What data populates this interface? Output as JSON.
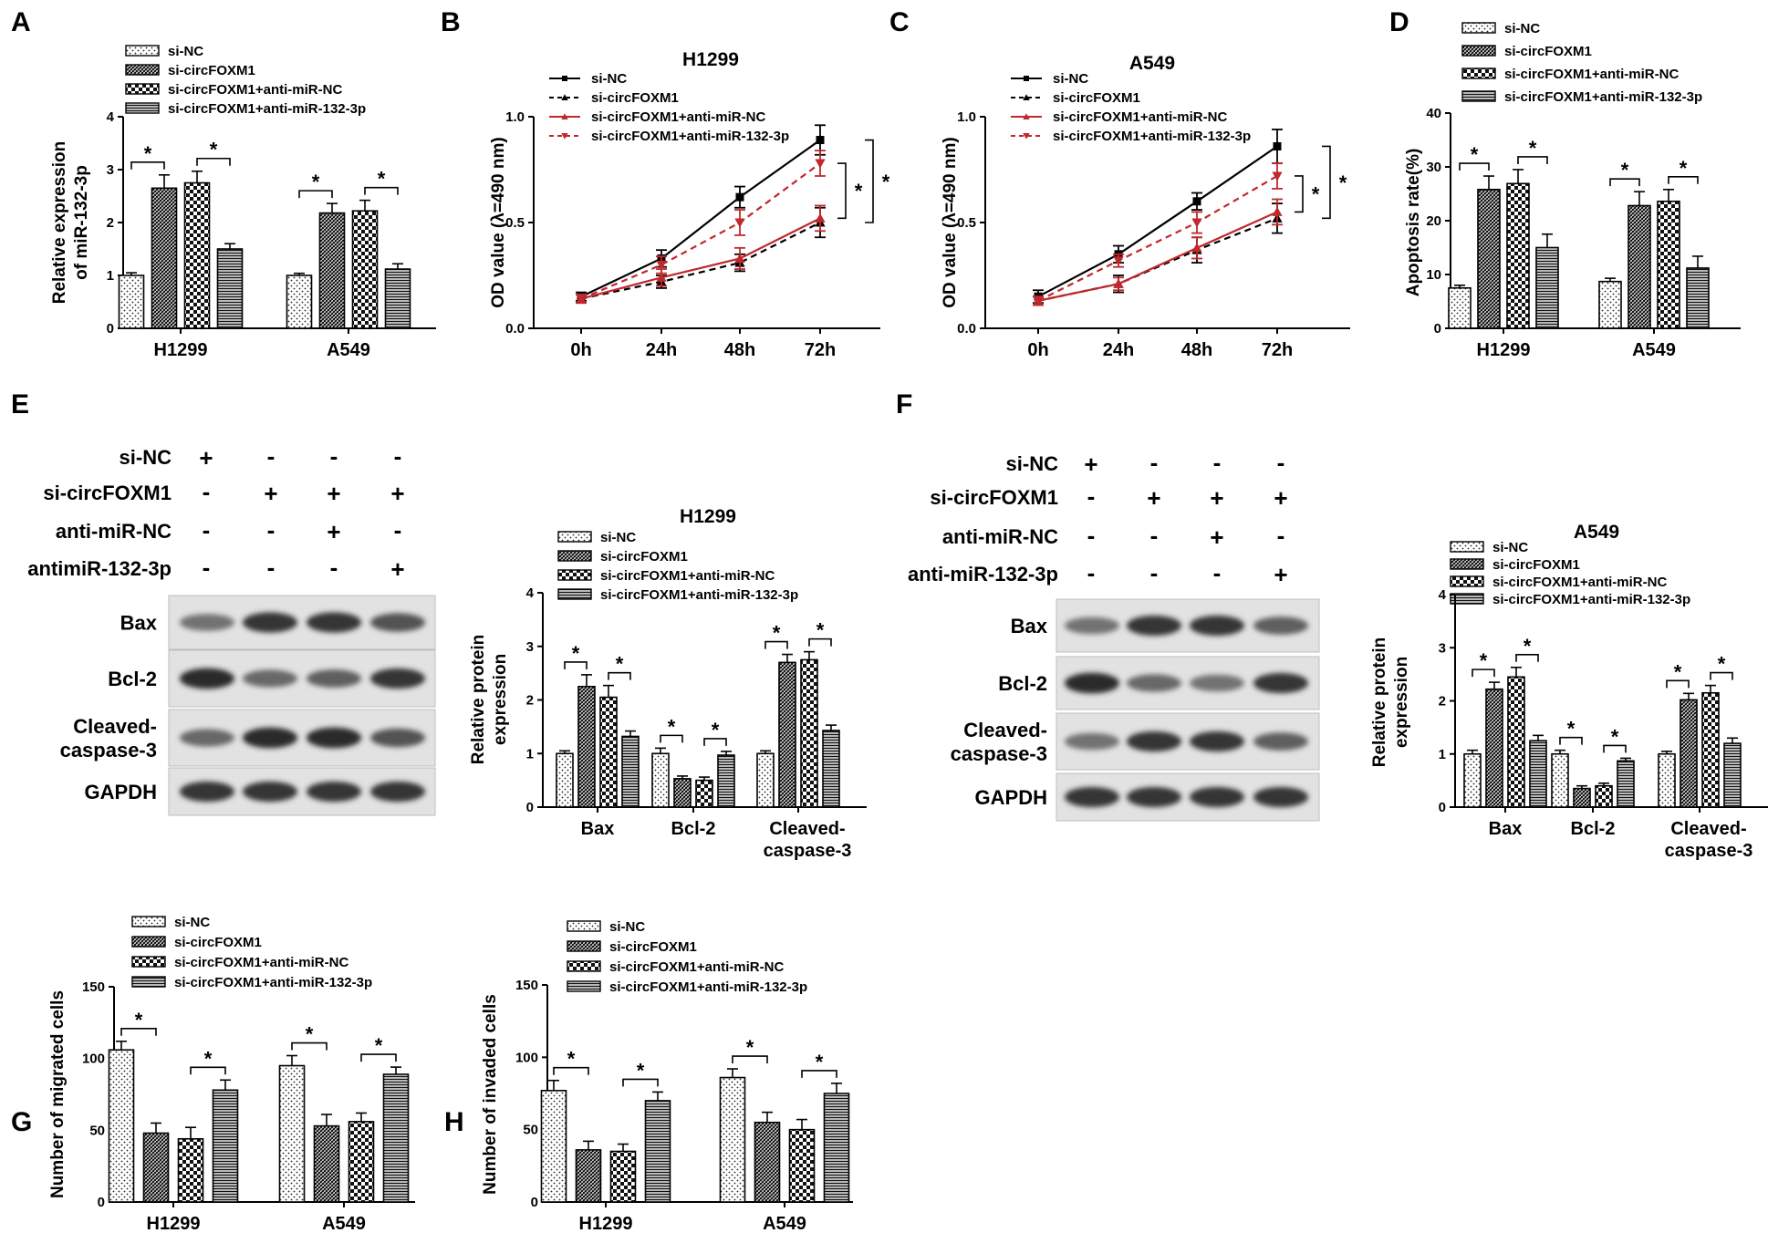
{
  "legend": [
    "si-NC",
    "si-circFOXM1",
    "si-circFOXM1+anti-miR-NC",
    "si-circFOXM1+anti-miR-132-3p"
  ],
  "time_points": [
    "0h",
    "24h",
    "48h",
    "72h"
  ],
  "significance_mark": "*",
  "blots": [
    {
      "panel": "E",
      "rows": [
        {
          "label": "si-NC",
          "signs": [
            "+",
            "-",
            "-",
            "-"
          ]
        },
        {
          "label": "si-circFOXM1",
          "signs": [
            "-",
            "+",
            "+",
            "+"
          ]
        },
        {
          "label": "anti-miR-NC",
          "signs": [
            "-",
            "-",
            "+",
            "-"
          ]
        },
        {
          "label": "antimiR-132-3p",
          "signs": [
            "-",
            "-",
            "-",
            "+"
          ]
        }
      ],
      "bands": [
        {
          "label": [
            "Bax"
          ],
          "intensity": [
            0.55,
            0.85,
            0.85,
            0.7
          ]
        },
        {
          "label": [
            "Bcl-2"
          ],
          "intensity": [
            0.9,
            0.6,
            0.65,
            0.85
          ]
        },
        {
          "label": [
            "Cleaved-",
            "caspase-3"
          ],
          "intensity": [
            0.6,
            0.9,
            0.9,
            0.7
          ]
        },
        {
          "label": [
            "GAPDH"
          ],
          "intensity": [
            0.85,
            0.85,
            0.85,
            0.85
          ]
        }
      ]
    },
    {
      "panel": "F",
      "rows": [
        {
          "label": "si-NC",
          "signs": [
            "+",
            "-",
            "-",
            "-"
          ]
        },
        {
          "label": "si-circFOXM1",
          "signs": [
            "-",
            "+",
            "+",
            "+"
          ]
        },
        {
          "label": "anti-miR-NC",
          "signs": [
            "-",
            "-",
            "+",
            "-"
          ]
        },
        {
          "label": "anti-miR-132-3p",
          "signs": [
            "-",
            "-",
            "-",
            "+"
          ]
        }
      ],
      "bands": [
        {
          "label": [
            "Bax"
          ],
          "intensity": [
            0.55,
            0.85,
            0.85,
            0.65
          ]
        },
        {
          "label": [
            "Bcl-2"
          ],
          "intensity": [
            0.9,
            0.6,
            0.55,
            0.85
          ]
        },
        {
          "label": [
            "Cleaved-",
            "caspase-3"
          ],
          "intensity": [
            0.55,
            0.85,
            0.85,
            0.65
          ]
        },
        {
          "label": [
            "GAPDH"
          ],
          "intensity": [
            0.85,
            0.85,
            0.85,
            0.85
          ]
        }
      ]
    }
  ],
  "chart_data": [
    {
      "panel": "A",
      "type": "bar",
      "title": "",
      "ylabel": [
        "Relative expression",
        "of miR-132-3p"
      ],
      "categories": [
        "H1299",
        "A549"
      ],
      "ylim": [
        0,
        4
      ],
      "yticks": [
        0,
        1,
        2,
        3,
        4
      ],
      "series": [
        {
          "values": [
            1.0,
            1.0
          ],
          "errors": [
            0.05,
            0.04
          ]
        },
        {
          "values": [
            2.65,
            2.18
          ],
          "errors": [
            0.25,
            0.18
          ]
        },
        {
          "values": [
            2.75,
            2.22
          ],
          "errors": [
            0.22,
            0.2
          ]
        },
        {
          "values": [
            1.5,
            1.12
          ],
          "errors": [
            0.1,
            0.1
          ]
        }
      ],
      "sig": [
        [
          0,
          0,
          1
        ],
        [
          0,
          2,
          3
        ],
        [
          1,
          0,
          1
        ],
        [
          1,
          2,
          3
        ]
      ]
    },
    {
      "panel": "B",
      "type": "line",
      "title": "H1299",
      "ylabel": "OD value (λ=490 nm)",
      "x": [
        "0h",
        "24h",
        "48h",
        "72h"
      ],
      "ylim": [
        0,
        1.0
      ],
      "yticks": [
        0.0,
        0.5,
        1.0
      ],
      "series": [
        {
          "values": [
            0.15,
            0.33,
            0.62,
            0.89
          ],
          "errors": [
            0.02,
            0.04,
            0.05,
            0.07
          ]
        },
        {
          "values": [
            0.14,
            0.22,
            0.31,
            0.5
          ],
          "errors": [
            0.02,
            0.03,
            0.04,
            0.07
          ]
        },
        {
          "values": [
            0.14,
            0.24,
            0.33,
            0.52
          ],
          "errors": [
            0.02,
            0.04,
            0.05,
            0.06
          ]
        },
        {
          "values": [
            0.14,
            0.3,
            0.5,
            0.78
          ],
          "errors": [
            0.02,
            0.04,
            0.06,
            0.06
          ]
        }
      ],
      "brackets": [
        {
          "top": 0.89,
          "bottom": 0.5,
          "label": "*"
        },
        {
          "top": 0.78,
          "bottom": 0.52,
          "label": "*"
        }
      ]
    },
    {
      "panel": "C",
      "type": "line",
      "title": "A549",
      "ylabel": "OD value (λ=490 nm)",
      "x": [
        "0h",
        "24h",
        "48h",
        "72h"
      ],
      "ylim": [
        0,
        1.0
      ],
      "yticks": [
        0.0,
        0.5,
        1.0
      ],
      "series": [
        {
          "values": [
            0.15,
            0.35,
            0.6,
            0.86
          ],
          "errors": [
            0.03,
            0.04,
            0.04,
            0.08
          ]
        },
        {
          "values": [
            0.13,
            0.21,
            0.37,
            0.52
          ],
          "errors": [
            0.02,
            0.04,
            0.06,
            0.07
          ]
        },
        {
          "values": [
            0.13,
            0.21,
            0.38,
            0.55
          ],
          "errors": [
            0.02,
            0.03,
            0.05,
            0.06
          ]
        },
        {
          "values": [
            0.13,
            0.32,
            0.5,
            0.72
          ],
          "errors": [
            0.02,
            0.03,
            0.05,
            0.06
          ]
        }
      ],
      "brackets": [
        {
          "top": 0.86,
          "bottom": 0.52,
          "label": "*"
        },
        {
          "top": 0.72,
          "bottom": 0.55,
          "label": "*"
        }
      ]
    },
    {
      "panel": "D",
      "type": "bar",
      "title": "",
      "ylabel": "Apoptosis rate(%)",
      "categories": [
        "H1299",
        "A549"
      ],
      "ylim": [
        0,
        40
      ],
      "yticks": [
        0,
        10,
        20,
        30,
        40
      ],
      "series": [
        {
          "values": [
            7.5,
            8.7
          ],
          "errors": [
            0.5,
            0.6
          ]
        },
        {
          "values": [
            25.8,
            22.8
          ],
          "errors": [
            2.5,
            2.6
          ]
        },
        {
          "values": [
            26.9,
            23.6
          ],
          "errors": [
            2.6,
            2.2
          ]
        },
        {
          "values": [
            15.0,
            11.2
          ],
          "errors": [
            2.5,
            2.2
          ]
        }
      ],
      "sig": [
        [
          0,
          0,
          1
        ],
        [
          0,
          2,
          3
        ],
        [
          1,
          0,
          1
        ],
        [
          1,
          2,
          3
        ]
      ]
    },
    {
      "panel": "E",
      "type": "bar",
      "title": "H1299",
      "ylabel": [
        "Relative protein",
        "expression"
      ],
      "categories": [
        [
          "Bax"
        ],
        [
          "Bcl-2"
        ],
        [
          "Cleaved-",
          "caspase-3"
        ]
      ],
      "ylim": [
        0,
        4
      ],
      "yticks": [
        0,
        1,
        2,
        3,
        4
      ],
      "series": [
        {
          "values": [
            1.0,
            1.0,
            1.0
          ],
          "errors": [
            0.05,
            0.1,
            0.05
          ]
        },
        {
          "values": [
            2.25,
            0.53,
            2.7
          ],
          "errors": [
            0.22,
            0.05,
            0.15
          ]
        },
        {
          "values": [
            2.05,
            0.5,
            2.75
          ],
          "errors": [
            0.22,
            0.06,
            0.15
          ]
        },
        {
          "values": [
            1.32,
            0.97,
            1.43
          ],
          "errors": [
            0.1,
            0.07,
            0.1
          ]
        }
      ],
      "sig": [
        [
          0,
          0,
          1
        ],
        [
          0,
          2,
          3
        ],
        [
          1,
          0,
          1
        ],
        [
          1,
          2,
          3
        ],
        [
          2,
          0,
          1
        ],
        [
          2,
          2,
          3
        ]
      ]
    },
    {
      "panel": "F",
      "type": "bar",
      "title": "A549",
      "ylabel": [
        "Relative protein",
        "expression"
      ],
      "categories": [
        [
          "Bax"
        ],
        [
          "Bcl-2"
        ],
        [
          "Cleaved-",
          "caspase-3"
        ]
      ],
      "ylim": [
        0,
        4
      ],
      "yticks": [
        0,
        1,
        2,
        3,
        4
      ],
      "series": [
        {
          "values": [
            1.0,
            1.0,
            1.0
          ],
          "errors": [
            0.07,
            0.07,
            0.05
          ]
        },
        {
          "values": [
            2.22,
            0.35,
            2.02
          ],
          "errors": [
            0.13,
            0.05,
            0.12
          ]
        },
        {
          "values": [
            2.45,
            0.4,
            2.15
          ],
          "errors": [
            0.18,
            0.05,
            0.14
          ]
        },
        {
          "values": [
            1.25,
            0.87,
            1.2
          ],
          "errors": [
            0.1,
            0.05,
            0.1
          ]
        }
      ],
      "sig": [
        [
          0,
          0,
          1
        ],
        [
          0,
          2,
          3
        ],
        [
          1,
          0,
          1
        ],
        [
          1,
          2,
          3
        ],
        [
          2,
          0,
          1
        ],
        [
          2,
          2,
          3
        ]
      ]
    },
    {
      "panel": "G",
      "type": "bar",
      "title": "",
      "ylabel": "Number of migrated cells",
      "categories": [
        "H1299",
        "A549"
      ],
      "ylim": [
        0,
        150
      ],
      "yticks": [
        0,
        50,
        100,
        150
      ],
      "series": [
        {
          "values": [
            106,
            95
          ],
          "errors": [
            6,
            7
          ]
        },
        {
          "values": [
            48,
            53
          ],
          "errors": [
            7,
            8
          ]
        },
        {
          "values": [
            44,
            56
          ],
          "errors": [
            8,
            6
          ]
        },
        {
          "values": [
            78,
            89
          ],
          "errors": [
            7,
            5
          ]
        }
      ],
      "sig": [
        [
          0,
          0,
          1
        ],
        [
          0,
          2,
          3
        ],
        [
          1,
          0,
          1
        ],
        [
          1,
          2,
          3
        ]
      ]
    },
    {
      "panel": "H",
      "type": "bar",
      "title": "",
      "ylabel": "Number of invaded cells",
      "categories": [
        "H1299",
        "A549"
      ],
      "ylim": [
        0,
        150
      ],
      "yticks": [
        0,
        50,
        100,
        150
      ],
      "series": [
        {
          "values": [
            77,
            86
          ],
          "errors": [
            7,
            6
          ]
        },
        {
          "values": [
            36,
            55
          ],
          "errors": [
            6,
            7
          ]
        },
        {
          "values": [
            35,
            50
          ],
          "errors": [
            5,
            7
          ]
        },
        {
          "values": [
            70,
            75
          ],
          "errors": [
            6,
            7
          ]
        }
      ],
      "sig": [
        [
          0,
          0,
          1
        ],
        [
          0,
          2,
          3
        ],
        [
          1,
          0,
          1
        ],
        [
          1,
          2,
          3
        ]
      ]
    }
  ]
}
